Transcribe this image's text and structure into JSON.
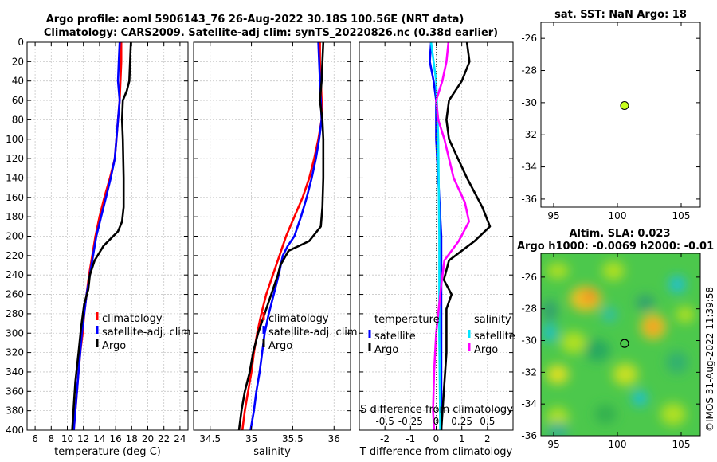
{
  "title": {
    "line1": "Argo profile: aoml 5906143_76 26-Aug-2022 30.18S 100.56E (NRT data)",
    "line2": "Climatology: CARS2009. Satellite-adj clim: synTS_20220826.nc (0.38d earlier)"
  },
  "watermark": "©IMOS 31-Aug-2022 11:39:58",
  "colors": {
    "climatology": "#ff0000",
    "satellite": "#0000ff",
    "argo": "#000000",
    "sat_salinity": "#00e5ff",
    "argo_salinity": "#ff00ff",
    "marker": "#c8ff1e"
  },
  "chart_data": [
    {
      "id": "temperature",
      "type": "line",
      "xlabel": "temperature (deg C)",
      "ylabel": "",
      "xlim": [
        5,
        25
      ],
      "ylim": [
        0,
        400
      ],
      "xticks": [
        6,
        8,
        10,
        12,
        14,
        16,
        18,
        20,
        22,
        24
      ],
      "yticks": [
        0,
        20,
        40,
        60,
        80,
        100,
        120,
        140,
        160,
        180,
        200,
        220,
        240,
        260,
        280,
        300,
        320,
        340,
        360,
        380,
        400
      ],
      "legend": [
        "climatology",
        "satellite-adj. clim",
        "Argo"
      ],
      "series": [
        {
          "name": "climatology",
          "color": "#ff0000",
          "points": [
            [
              16.7,
              0
            ],
            [
              16.7,
              20
            ],
            [
              16.6,
              40
            ],
            [
              16.5,
              60
            ],
            [
              16.3,
              80
            ],
            [
              16.1,
              100
            ],
            [
              15.9,
              120
            ],
            [
              15.3,
              140
            ],
            [
              14.6,
              160
            ],
            [
              14.0,
              180
            ],
            [
              13.5,
              200
            ],
            [
              13.1,
              220
            ],
            [
              12.7,
              240
            ],
            [
              12.4,
              260
            ],
            [
              12.1,
              280
            ],
            [
              11.9,
              300
            ],
            [
              11.6,
              320
            ],
            [
              11.4,
              340
            ],
            [
              11.2,
              360
            ],
            [
              11.0,
              380
            ],
            [
              10.8,
              400
            ]
          ]
        },
        {
          "name": "satellite-adj. clim",
          "color": "#0000ff",
          "points": [
            [
              16.5,
              0
            ],
            [
              16.4,
              20
            ],
            [
              16.3,
              40
            ],
            [
              16.5,
              60
            ],
            [
              16.3,
              80
            ],
            [
              16.1,
              100
            ],
            [
              15.9,
              120
            ],
            [
              15.4,
              140
            ],
            [
              14.8,
              160
            ],
            [
              14.2,
              180
            ],
            [
              13.6,
              200
            ],
            [
              13.2,
              220
            ],
            [
              12.8,
              240
            ],
            [
              12.4,
              260
            ],
            [
              12.1,
              280
            ],
            [
              11.8,
              300
            ],
            [
              11.6,
              320
            ],
            [
              11.4,
              340
            ],
            [
              11.2,
              360
            ],
            [
              11.0,
              380
            ],
            [
              10.8,
              400
            ]
          ]
        },
        {
          "name": "Argo",
          "color": "#000000",
          "points": [
            [
              17.9,
              0
            ],
            [
              17.8,
              20
            ],
            [
              17.7,
              40
            ],
            [
              17.4,
              50
            ],
            [
              16.9,
              60
            ],
            [
              16.8,
              80
            ],
            [
              16.9,
              100
            ],
            [
              17.0,
              140
            ],
            [
              17.0,
              170
            ],
            [
              16.8,
              185
            ],
            [
              16.3,
              195
            ],
            [
              14.5,
              210
            ],
            [
              13.4,
              225
            ],
            [
              12.8,
              240
            ],
            [
              12.6,
              255
            ],
            [
              12.1,
              270
            ],
            [
              11.7,
              295
            ],
            [
              11.4,
              320
            ],
            [
              11.0,
              350
            ],
            [
              10.8,
              375
            ],
            [
              10.6,
              400
            ]
          ]
        }
      ]
    },
    {
      "id": "salinity",
      "type": "line",
      "xlabel": "salinity",
      "ylabel": "",
      "xlim": [
        34.3,
        36.2
      ],
      "ylim": [
        0,
        400
      ],
      "xticks": [
        34.5,
        35,
        35.5,
        36
      ],
      "xtick_labels": [
        "34.5",
        "35",
        "35.5",
        "36"
      ],
      "legend": [
        "climatology",
        "satellite-adj. clim",
        "Argo"
      ],
      "series": [
        {
          "name": "climatology",
          "color": "#ff0000",
          "points": [
            [
              35.83,
              0
            ],
            [
              35.83,
              20
            ],
            [
              35.84,
              40
            ],
            [
              35.85,
              60
            ],
            [
              35.85,
              80
            ],
            [
              35.81,
              100
            ],
            [
              35.76,
              120
            ],
            [
              35.7,
              140
            ],
            [
              35.62,
              160
            ],
            [
              35.52,
              180
            ],
            [
              35.42,
              200
            ],
            [
              35.34,
              220
            ],
            [
              35.26,
              240
            ],
            [
              35.18,
              260
            ],
            [
              35.12,
              280
            ],
            [
              35.07,
              300
            ],
            [
              35.03,
              320
            ],
            [
              35.0,
              340
            ],
            [
              34.96,
              360
            ],
            [
              34.92,
              380
            ],
            [
              34.89,
              400
            ]
          ]
        },
        {
          "name": "satellite-adj. clim",
          "color": "#0000ff",
          "points": [
            [
              35.81,
              0
            ],
            [
              35.82,
              20
            ],
            [
              35.83,
              40
            ],
            [
              35.84,
              60
            ],
            [
              35.85,
              80
            ],
            [
              35.82,
              100
            ],
            [
              35.78,
              120
            ],
            [
              35.73,
              140
            ],
            [
              35.67,
              160
            ],
            [
              35.6,
              180
            ],
            [
              35.52,
              200
            ],
            [
              35.44,
              210
            ],
            [
              35.38,
              220
            ],
            [
              35.33,
              240
            ],
            [
              35.27,
              260
            ],
            [
              35.21,
              280
            ],
            [
              35.16,
              300
            ],
            [
              35.13,
              320
            ],
            [
              35.1,
              340
            ],
            [
              35.06,
              360
            ],
            [
              35.03,
              380
            ],
            [
              34.99,
              400
            ]
          ]
        },
        {
          "name": "Argo",
          "color": "#000000",
          "points": [
            [
              35.87,
              0
            ],
            [
              35.86,
              20
            ],
            [
              35.85,
              40
            ],
            [
              35.83,
              60
            ],
            [
              35.86,
              80
            ],
            [
              35.87,
              100
            ],
            [
              35.87,
              140
            ],
            [
              35.86,
              170
            ],
            [
              35.84,
              190
            ],
            [
              35.7,
              205
            ],
            [
              35.45,
              215
            ],
            [
              35.35,
              230
            ],
            [
              35.32,
              240
            ],
            [
              35.22,
              265
            ],
            [
              35.16,
              280
            ],
            [
              35.08,
              300
            ],
            [
              35.02,
              320
            ],
            [
              34.98,
              340
            ],
            [
              34.92,
              360
            ],
            [
              34.88,
              380
            ],
            [
              34.85,
              400
            ]
          ]
        }
      ]
    },
    {
      "id": "differences",
      "type": "line",
      "xlabel": "T difference from climatology",
      "x2label": "S difference from climatology",
      "xlim": [
        -3,
        3
      ],
      "ylim": [
        0,
        400
      ],
      "xticks": [
        -2,
        -1,
        0,
        1,
        2
      ],
      "xtick_labels": [
        "-2",
        "-1",
        "0",
        "1",
        "2"
      ],
      "x2lim": [
        -0.75,
        0.75
      ],
      "x2ticks": [
        -0.5,
        -0.25,
        0,
        0.25,
        0.5
      ],
      "x2tick_labels": [
        "-0.5",
        "-0.25",
        "0",
        "0.25",
        "0.5"
      ],
      "legend_temperature": {
        "title": "temperature",
        "items": [
          "satellite",
          "Argo"
        ]
      },
      "legend_salinity": {
        "title": "salinity",
        "items": [
          "satellite",
          "Argo"
        ]
      },
      "series": [
        {
          "name": "temperature satellite",
          "axis": "T",
          "color": "#0000ff",
          "points": [
            [
              -0.2,
              0
            ],
            [
              -0.25,
              20
            ],
            [
              -0.1,
              40
            ],
            [
              0,
              60
            ],
            [
              0,
              80
            ],
            [
              0,
              100
            ],
            [
              0.1,
              150
            ],
            [
              0.2,
              200
            ],
            [
              0.2,
              300
            ],
            [
              0.2,
              400
            ]
          ]
        },
        {
          "name": "temperature Argo",
          "axis": "T",
          "color": "#000000",
          "points": [
            [
              1.2,
              0
            ],
            [
              1.3,
              20
            ],
            [
              1.0,
              40
            ],
            [
              0.5,
              60
            ],
            [
              0.4,
              80
            ],
            [
              0.5,
              100
            ],
            [
              1.2,
              140
            ],
            [
              1.8,
              170
            ],
            [
              2.1,
              190
            ],
            [
              1.5,
              205
            ],
            [
              0.5,
              225
            ],
            [
              0.3,
              245
            ],
            [
              0.6,
              260
            ],
            [
              0.4,
              275
            ],
            [
              0.4,
              320
            ],
            [
              0.3,
              360
            ],
            [
              0.2,
              400
            ]
          ]
        },
        {
          "name": "salinity satellite",
          "axis": "S",
          "color": "#00e5ff",
          "points": [
            [
              -0.05,
              0
            ],
            [
              0,
              40
            ],
            [
              0.02,
              100
            ],
            [
              0.03,
              200
            ],
            [
              0.03,
              300
            ],
            [
              0.04,
              400
            ]
          ]
        },
        {
          "name": "salinity Argo",
          "axis": "S",
          "color": "#ff00ff",
          "points": [
            [
              0.12,
              0
            ],
            [
              0.1,
              20
            ],
            [
              0.06,
              40
            ],
            [
              0,
              60
            ],
            [
              0.02,
              80
            ],
            [
              0.08,
              100
            ],
            [
              0.17,
              140
            ],
            [
              0.28,
              165
            ],
            [
              0.32,
              185
            ],
            [
              0.22,
              205
            ],
            [
              0.08,
              225
            ],
            [
              0.05,
              250
            ],
            [
              0,
              300
            ],
            [
              -0.02,
              340
            ],
            [
              -0.03,
              380
            ],
            [
              -0.02,
              400
            ]
          ]
        }
      ]
    },
    {
      "id": "sst_map",
      "type": "scatter",
      "title": "sat. SST: NaN Argo: 18",
      "xlim": [
        94,
        106.5
      ],
      "ylim": [
        -36.5,
        -25
      ],
      "xticks": [
        95,
        100,
        105
      ],
      "yticks": [
        -26,
        -28,
        -30,
        -32,
        -34,
        -36
      ],
      "points": [
        {
          "lon": 100.56,
          "lat": -30.18,
          "color": "#c8ff1e"
        }
      ]
    },
    {
      "id": "sla_map",
      "type": "heatmap",
      "title_line1": "Altim. SLA: 0.023",
      "title_line2": "Argo h1000: -0.0069 h2000: -0.01",
      "xlim": [
        94,
        106.5
      ],
      "ylim": [
        -36,
        -24.5
      ],
      "xticks": [
        95,
        100,
        105
      ],
      "yticks": [
        -26,
        -28,
        -30,
        -32,
        -34,
        -36
      ],
      "points": [
        {
          "lon": 100.56,
          "lat": -30.18
        }
      ]
    }
  ]
}
